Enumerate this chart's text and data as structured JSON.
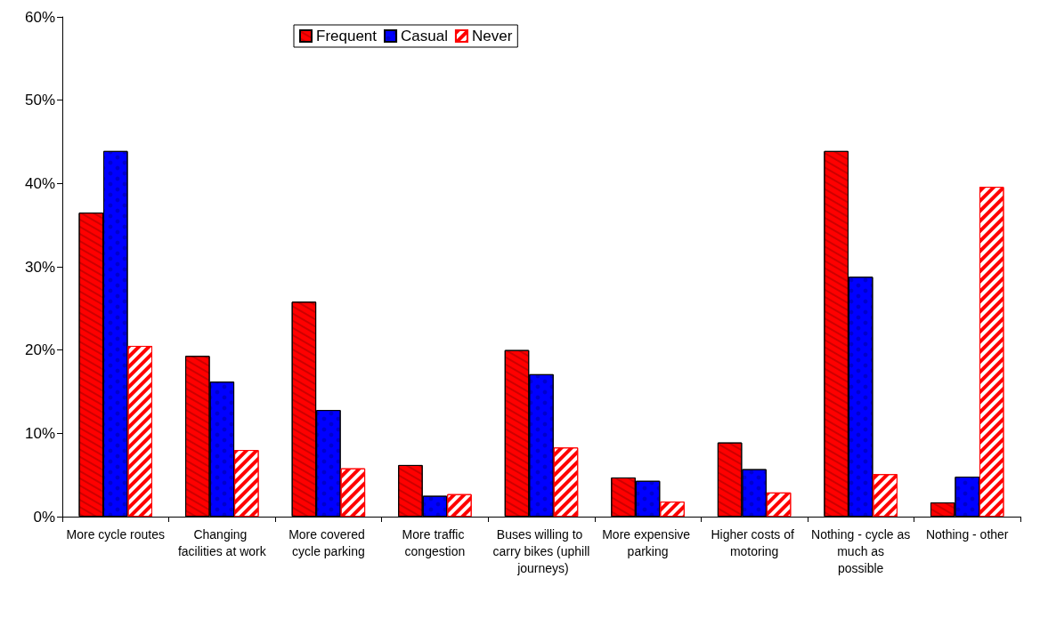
{
  "chart_data": {
    "type": "bar",
    "categories": [
      "More cycle routes",
      "Changing facilities at work",
      "More covered cycle parking",
      "More traffic congestion",
      "Buses willing to carry bikes (uphill journeys)",
      "More expensive parking",
      "Higher costs of motoring",
      "Nothing - cycle as much as possible",
      "Nothing - other"
    ],
    "series": [
      {
        "name": "Frequent",
        "color": "#ff0000",
        "values": [
          36.5,
          19.3,
          25.8,
          6.2,
          20.0,
          4.7,
          8.9,
          43.9,
          1.7
        ]
      },
      {
        "name": "Casual",
        "color": "#0000ff",
        "values": [
          43.9,
          16.2,
          12.8,
          2.5,
          17.1,
          4.3,
          5.7,
          28.8,
          4.8
        ]
      },
      {
        "name": "Never",
        "color": "#ff0000",
        "values": [
          20.5,
          8.0,
          5.8,
          2.7,
          8.3,
          1.8,
          2.9,
          5.1,
          39.6
        ]
      }
    ],
    "ylim": [
      0,
      60
    ],
    "yticks": [
      {
        "value": 0,
        "label": "0%"
      },
      {
        "value": 10,
        "label": "10%"
      },
      {
        "value": 20,
        "label": "20%"
      },
      {
        "value": 30,
        "label": "30%"
      },
      {
        "value": 40,
        "label": "40%"
      },
      {
        "value": 50,
        "label": "50%"
      },
      {
        "value": 60,
        "label": "60%"
      }
    ],
    "grid": false,
    "legend": "top"
  }
}
